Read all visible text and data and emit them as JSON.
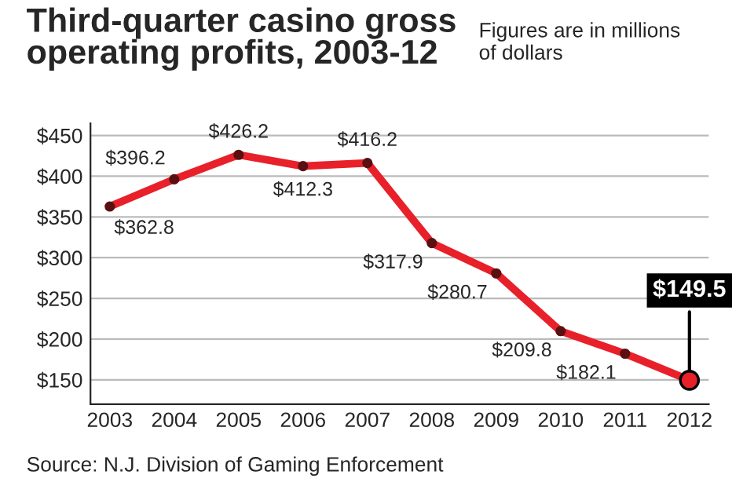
{
  "chart_data": {
    "type": "line",
    "title": "Third-quarter casino gross\noperating profits, 2003-12",
    "subtitle": "Figures are in millions\nof dollars",
    "categories": [
      "2003",
      "2004",
      "2005",
      "2006",
      "2007",
      "2008",
      "2009",
      "2010",
      "2011",
      "2012"
    ],
    "series": [
      {
        "color": "#e8202a",
        "values": [
          362.8,
          396.2,
          426.2,
          412.3,
          416.2,
          317.9,
          280.7,
          209.8,
          182.1,
          149.5
        ]
      }
    ],
    "value_labels": [
      "$362.8",
      "$396.2",
      "$426.2",
      "$412.3",
      "$416.2",
      "$317.9",
      "$280.7",
      "$209.8",
      "$182.1",
      "$149.5"
    ],
    "ylim": [
      120,
      465
    ],
    "yticks": [
      {
        "value": 150,
        "label": "$150"
      },
      {
        "value": 200,
        "label": "$200"
      },
      {
        "value": 250,
        "label": "$250"
      },
      {
        "value": 300,
        "label": "$300"
      },
      {
        "value": 350,
        "label": "$350"
      },
      {
        "value": 400,
        "label": "$400"
      },
      {
        "value": 450,
        "label": "$450"
      }
    ],
    "grid": "y",
    "marker": "circle",
    "line_style": "solid",
    "annotations": [
      "Source: N.J. Division of Gaming Enforcement"
    ]
  }
}
